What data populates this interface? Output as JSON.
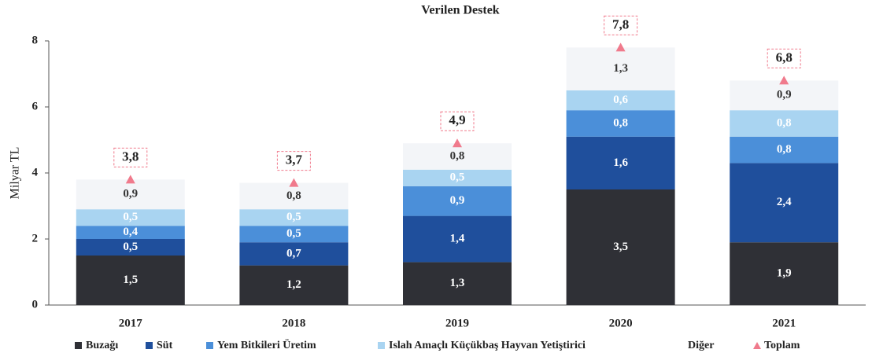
{
  "chart_data": {
    "type": "stacked_bar",
    "title": "Verilen Destek",
    "y_label": "Milyar TL",
    "categories": [
      "2017",
      "2018",
      "2019",
      "2020",
      "2021"
    ],
    "ylim": [
      0,
      8
    ],
    "yticks": [
      0,
      2,
      4,
      6,
      8
    ],
    "series": [
      {
        "name": "Buzağı",
        "color": "#2f3036",
        "values": [
          1.5,
          1.2,
          1.3,
          3.5,
          1.9
        ],
        "value_labels": [
          "1,5",
          "1,2",
          "1,3",
          "3,5",
          "1,9"
        ]
      },
      {
        "name": "Süt",
        "color": "#1f4f9c",
        "values": [
          0.5,
          0.7,
          1.4,
          1.6,
          2.4
        ],
        "value_labels": [
          "0,5",
          "0,7",
          "1,4",
          "1,6",
          "2,4"
        ]
      },
      {
        "name": "Yem Bitkileri Üretim",
        "color": "#4b8fd9",
        "values": [
          0.4,
          0.5,
          0.9,
          0.8,
          0.8
        ],
        "value_labels": [
          "0,4",
          "0,5",
          "0,9",
          "0,8",
          "0,8"
        ]
      },
      {
        "name": "Islah Amaçlı Küçükbaş Hayvan Yetiştirici",
        "color": "#a9d4f1",
        "values": [
          0.5,
          0.5,
          0.5,
          0.6,
          0.8
        ],
        "value_labels": [
          "0,5",
          "0,5",
          "0,5",
          "0,6",
          "0,8"
        ]
      },
      {
        "name": "Diğer",
        "color": "#f3f5f8",
        "values": [
          0.9,
          0.8,
          0.8,
          1.3,
          0.9
        ],
        "value_labels": [
          "0,9",
          "0,8",
          "0,8",
          "1,3",
          "0,9"
        ]
      }
    ],
    "totals": {
      "name": "Toplam",
      "color": "#f07a8c",
      "values": [
        3.8,
        3.7,
        4.9,
        7.8,
        6.8
      ],
      "value_labels": [
        "3,8",
        "3,7",
        "4,9",
        "7,8",
        "6,8"
      ]
    }
  }
}
